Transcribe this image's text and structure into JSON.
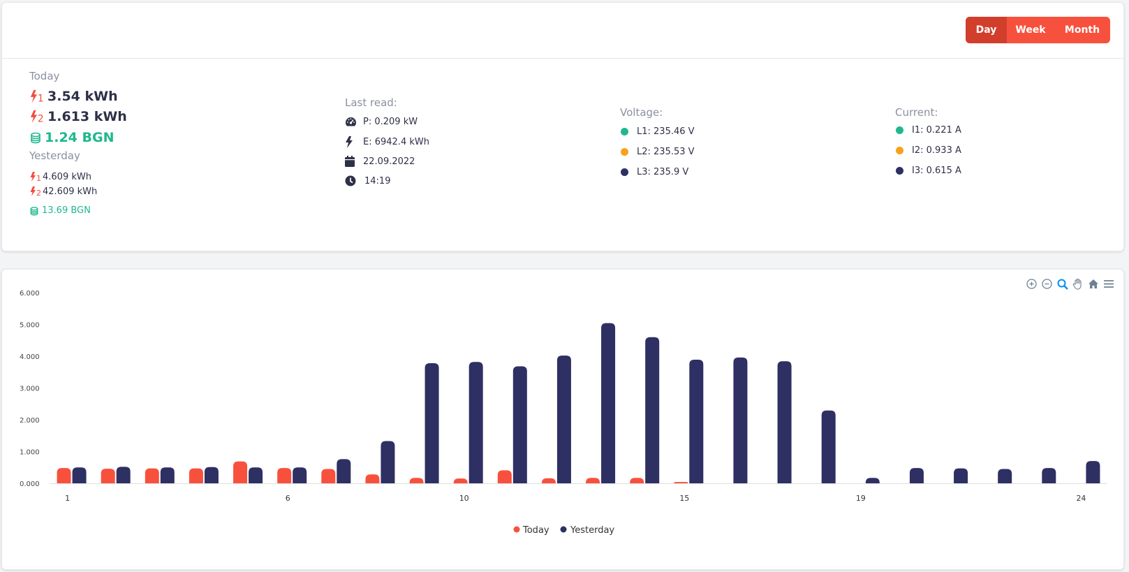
{
  "header": {
    "range_buttons": [
      {
        "label": "Day",
        "active": true
      },
      {
        "label": "Week",
        "active": false
      },
      {
        "label": "Month",
        "active": false
      }
    ]
  },
  "today": {
    "label": "Today",
    "tariff1": "3.54 kWh",
    "tariff2": "1.613 kWh",
    "cost": "1.24 BGN"
  },
  "yesterday": {
    "label": "Yesterday",
    "tariff1": "4.609 kWh",
    "tariff2": "42.609 kWh",
    "cost": "13.69 BGN"
  },
  "last_read": {
    "label": "Last read:",
    "power": "P: 0.209 kW",
    "energy": "E: 6942.4 kWh",
    "date": "22.09.2022",
    "time": "14:19"
  },
  "voltage": {
    "label": "Voltage:",
    "phases": [
      "L1: 235.46 V",
      "L2: 235.53 V",
      "L3: 235.9 V"
    ]
  },
  "current": {
    "label": "Current:",
    "phases": [
      "I1: 0.221 A",
      "I2: 0.933 A",
      "I3: 0.615 A"
    ]
  },
  "colors": {
    "accent": "#f7513d",
    "accent_dark": "#d13f2c",
    "green": "#1fb88e",
    "orange": "#f9a11b",
    "navy": "#2e2f63",
    "tariff_icon": "#f24c3d"
  },
  "toolbar_icons": [
    "zoom-in-icon",
    "zoom-out-icon",
    "zoom-select-icon",
    "pan-icon",
    "home-icon",
    "menu-icon"
  ],
  "chart_data": {
    "type": "bar",
    "categories": [
      "1",
      "2",
      "3",
      "4",
      "5",
      "6",
      "7",
      "8",
      "9",
      "10",
      "11",
      "12",
      "13",
      "14",
      "15",
      "16",
      "17",
      "18",
      "19",
      "20",
      "21",
      "22",
      "23",
      "24"
    ],
    "x_tick_labels": {
      "1": "1",
      "6": "6",
      "10": "10",
      "15": "15",
      "19": "19",
      "24": "24"
    },
    "series": [
      {
        "name": "Today",
        "color": "#f7513d",
        "values": [
          0.48,
          0.46,
          0.47,
          0.47,
          0.69,
          0.48,
          0.45,
          0.28,
          0.17,
          0.15,
          0.41,
          0.16,
          0.17,
          0.17,
          0.04,
          0,
          0,
          0,
          0,
          0,
          0,
          0,
          0,
          0
        ]
      },
      {
        "name": "Yesterday",
        "color": "#2e2f63",
        "values": [
          0.5,
          0.52,
          0.5,
          0.51,
          0.5,
          0.5,
          0.76,
          1.33,
          3.78,
          3.82,
          3.68,
          4.02,
          5.04,
          4.6,
          3.89,
          3.96,
          3.84,
          2.29,
          0.17,
          0.48,
          0.47,
          0.45,
          0.48,
          0.7
        ]
      }
    ],
    "y_ticks": [
      "6.000",
      "5.000",
      "4.000",
      "3.000",
      "2.000",
      "1.000",
      "0.000"
    ],
    "ylim": [
      0,
      6
    ],
    "legend": "bottom-center"
  }
}
